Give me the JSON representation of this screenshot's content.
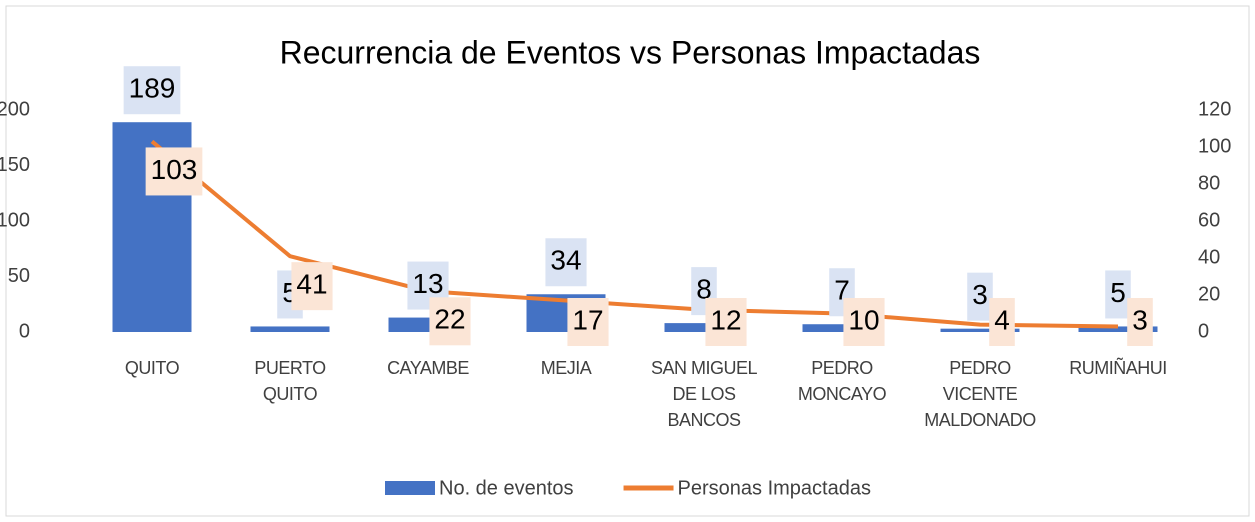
{
  "chart_data": {
    "type": "bar-line",
    "title": "Recurrencia de Eventos vs Personas Impactadas",
    "categories": [
      "QUITO",
      "PUERTO QUITO",
      "CAYAMBE",
      "MEJIA",
      "SAN MIGUEL DE LOS BANCOS",
      "PEDRO MONCAYO",
      "PEDRO VICENTE MALDONADO",
      "RUMIÑAHUI"
    ],
    "series": [
      {
        "name": "No. de eventos",
        "type": "bar",
        "color": "#4472c4",
        "values": [
          189,
          5,
          13,
          34,
          8,
          7,
          3,
          5
        ]
      },
      {
        "name": "Personas Impactadas",
        "type": "line",
        "axis": "y2",
        "color": "#ed7d31",
        "values": [
          103,
          41,
          22,
          17,
          12,
          10,
          4,
          3
        ]
      }
    ],
    "ylim": [
      0,
      200
    ],
    "yticks": [
      0,
      50,
      100,
      150,
      200
    ],
    "y2lim": [
      0,
      120
    ],
    "y2ticks": [
      0,
      20,
      40,
      60,
      80,
      100,
      120
    ],
    "legend": "bottom"
  }
}
